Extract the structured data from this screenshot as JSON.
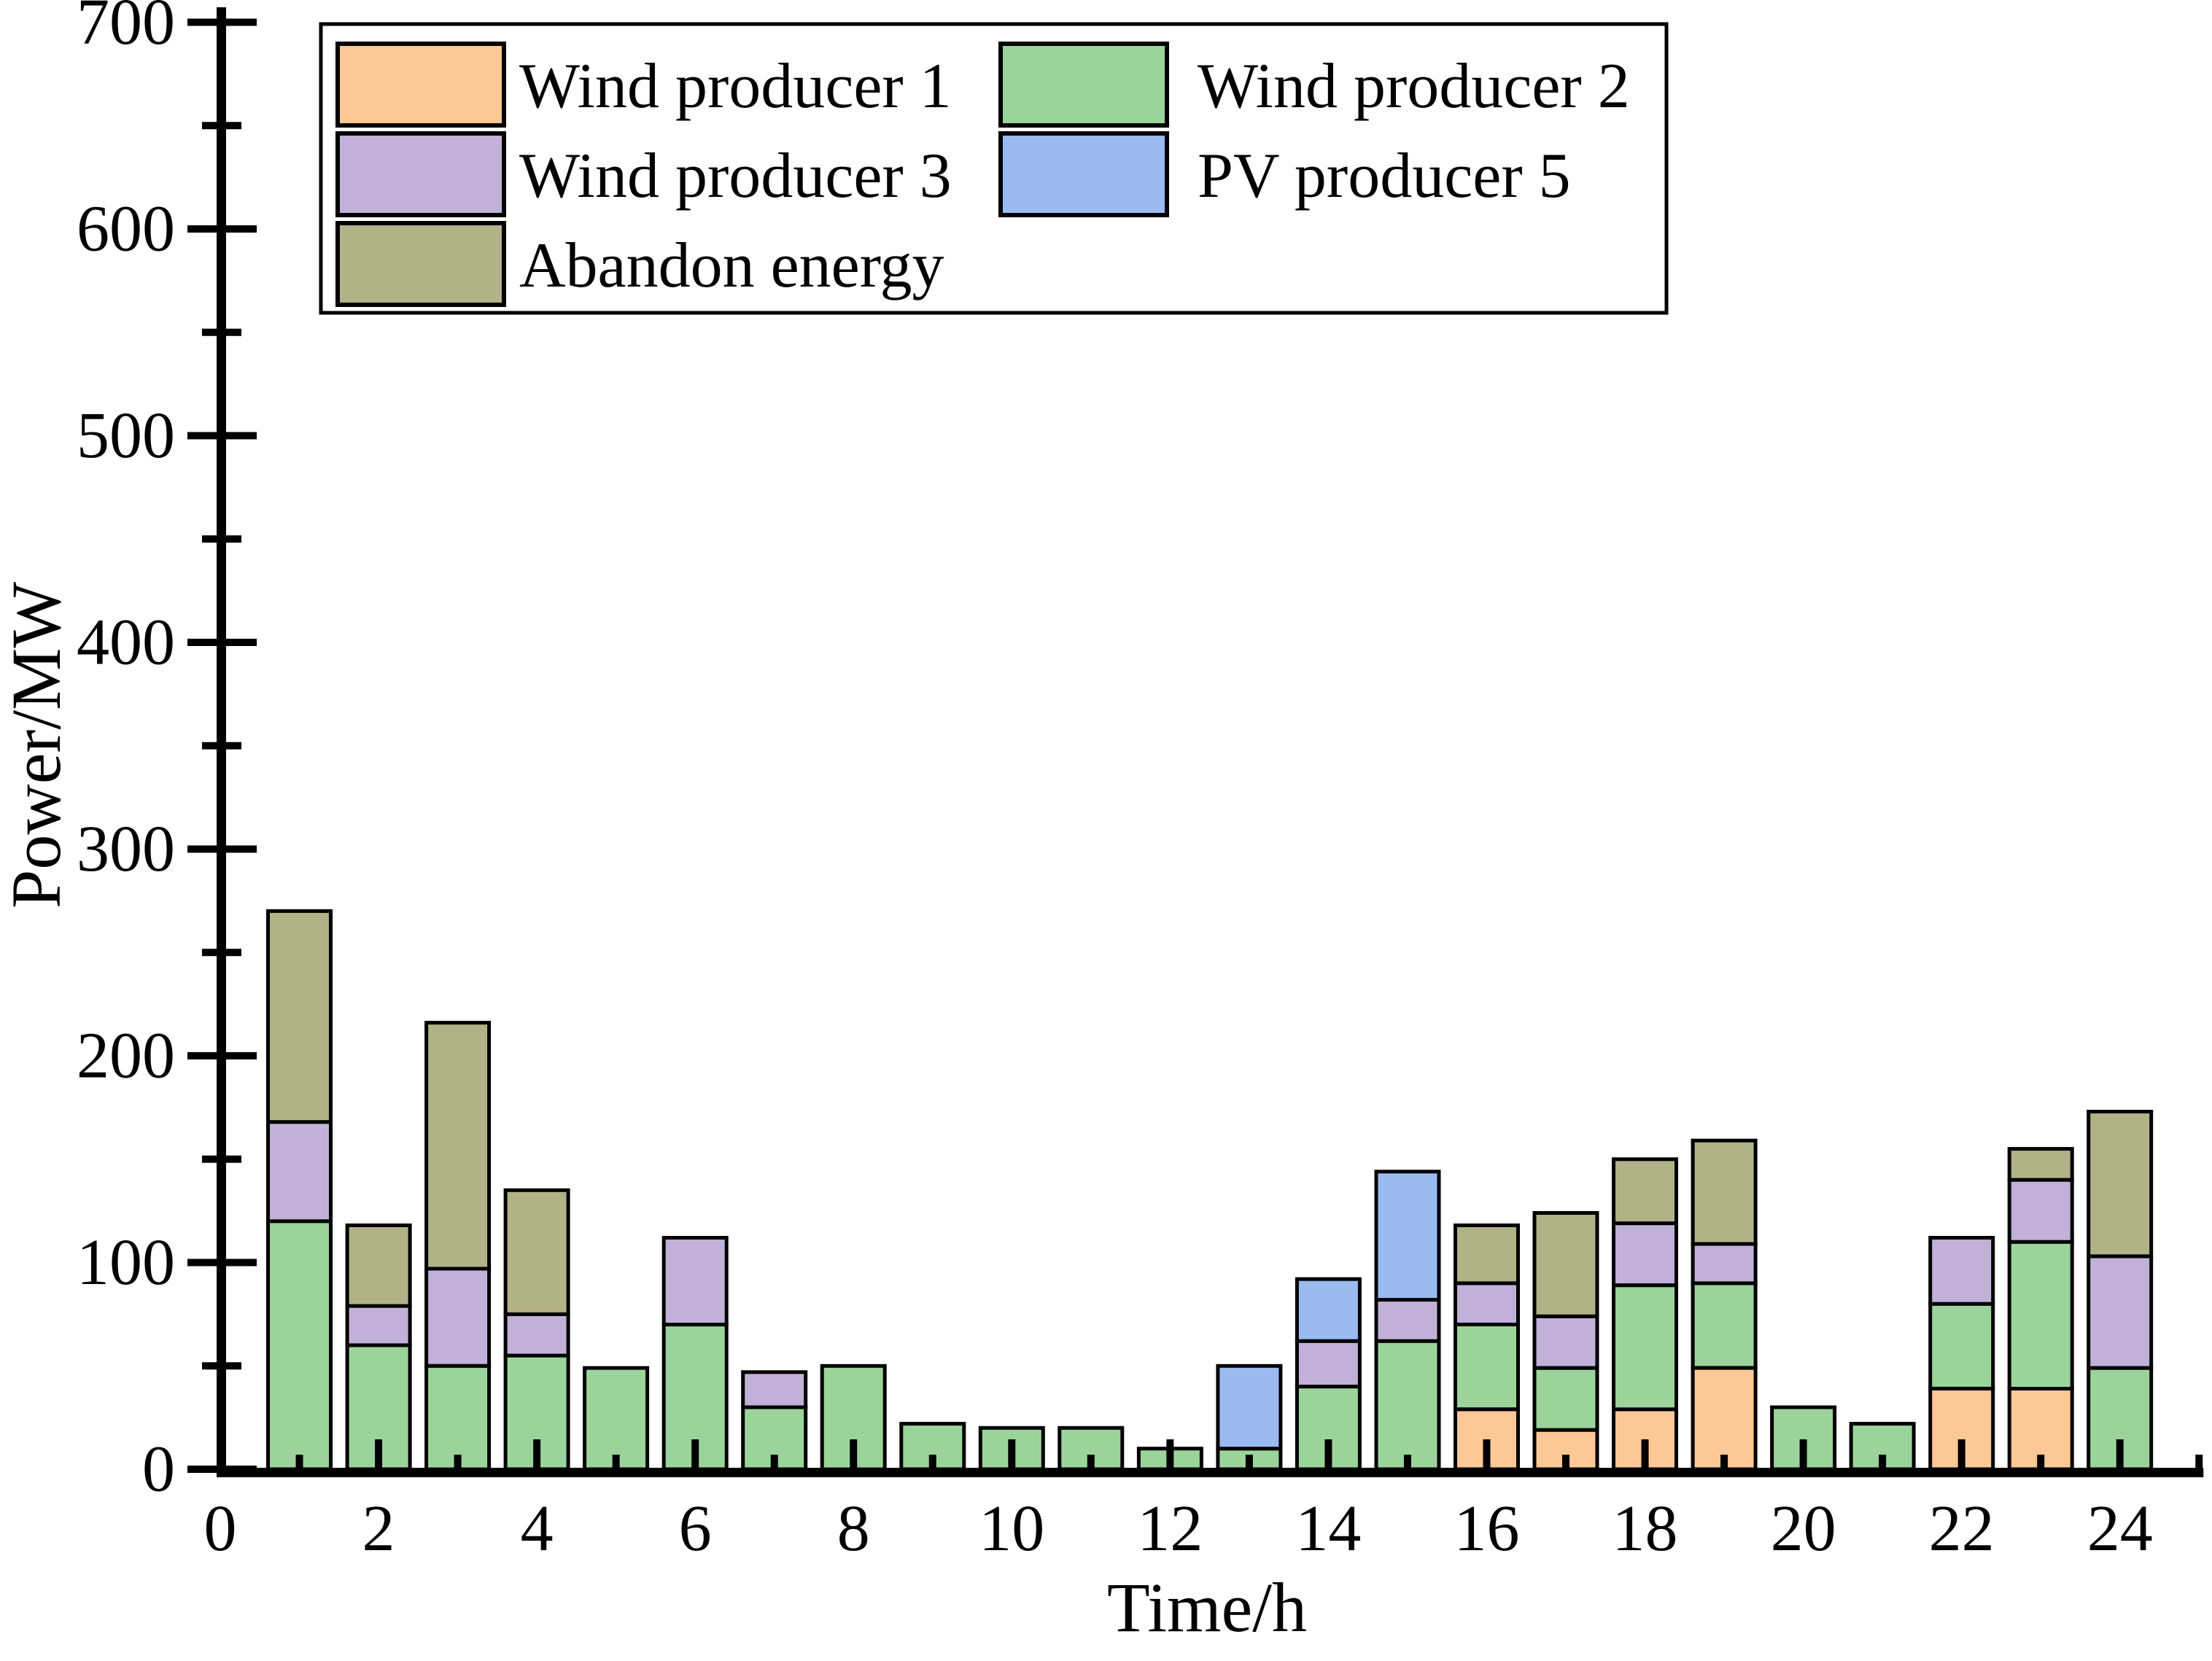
{
  "figure": {
    "background": "#ffffff",
    "axis_color": "#000000"
  },
  "chart_data": {
    "type": "bar",
    "stacked": true,
    "title": "",
    "xlabel": "Time/h",
    "ylabel": "Power/MW",
    "x": [
      1,
      2,
      3,
      4,
      5,
      6,
      7,
      8,
      9,
      10,
      11,
      12,
      13,
      14,
      15,
      16,
      17,
      18,
      19,
      20,
      21,
      22,
      23,
      24
    ],
    "series": [
      {
        "name": "Wind producer 1",
        "color": "#FCC896",
        "values": [
          0,
          0,
          0,
          0,
          0,
          0,
          0,
          0,
          0,
          0,
          0,
          0,
          0,
          0,
          0,
          29,
          19,
          29,
          49,
          0,
          0,
          39,
          39,
          0
        ]
      },
      {
        "name": "Wind producer 2",
        "color": "#9BD49A",
        "values": [
          120,
          60,
          50,
          55,
          49,
          70,
          30,
          50,
          22,
          20,
          20,
          10,
          10,
          40,
          62,
          41,
          30,
          60,
          41,
          30,
          22,
          41,
          71,
          49
        ]
      },
      {
        "name": "Wind producer 3",
        "color": "#C1B1D8",
        "values": [
          48,
          19,
          47,
          20,
          0,
          42,
          17,
          0,
          0,
          0,
          0,
          0,
          0,
          22,
          20,
          20,
          25,
          30,
          19,
          0,
          0,
          32,
          30,
          54
        ]
      },
      {
        "name": "PV producer 5",
        "color": "#9ABAF0",
        "values": [
          0,
          0,
          0,
          0,
          0,
          0,
          0,
          0,
          0,
          0,
          0,
          0,
          40,
          30,
          62,
          0,
          0,
          0,
          0,
          0,
          0,
          0,
          0,
          0
        ]
      },
      {
        "name": "Abandon energy",
        "color": "#B0B287",
        "values": [
          102,
          39,
          119,
          60,
          0,
          0,
          0,
          0,
          0,
          0,
          0,
          0,
          0,
          0,
          0,
          28,
          50,
          31,
          50,
          0,
          0,
          0,
          15,
          70
        ]
      }
    ],
    "xlim": [
      0,
      25
    ],
    "ylim": [
      0,
      700
    ],
    "xticks": [
      0,
      2,
      4,
      6,
      8,
      10,
      12,
      14,
      16,
      18,
      20,
      22,
      24
    ],
    "yticks": [
      0,
      100,
      200,
      300,
      400,
      500,
      600,
      700
    ],
    "x_minor_step": 1,
    "y_minor_step": 50,
    "grid": false,
    "legend_position": "top-left",
    "legend_rows": [
      [
        "Wind producer 1",
        "Wind producer 2"
      ],
      [
        "Wind producer 3",
        "PV producer 5"
      ],
      [
        "Abandon energy"
      ]
    ]
  }
}
